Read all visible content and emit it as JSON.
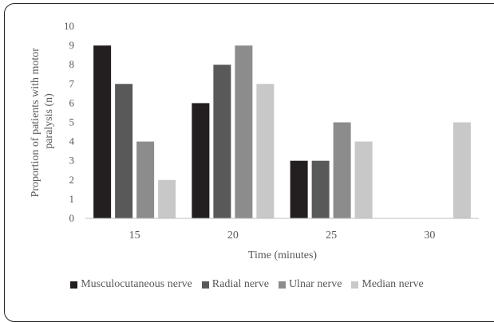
{
  "chart_data": {
    "type": "bar",
    "title": "",
    "xlabel": "Time (minutes)",
    "ylabel_lines": [
      "Proportion of patients with motor",
      "paralysis (n)"
    ],
    "categories": [
      "15",
      "20",
      "25",
      "30"
    ],
    "ylim": [
      0,
      10
    ],
    "yticks": [
      "0",
      "1",
      "2",
      "3",
      "4",
      "5",
      "6",
      "7",
      "8",
      "9",
      "10"
    ],
    "grid": false,
    "legend_position": "bottom",
    "series": [
      {
        "name": "Musculocutaneous nerve",
        "color": "#231f20",
        "values": [
          9,
          6,
          3,
          0
        ]
      },
      {
        "name": "Radial nerve",
        "color": "#595959",
        "values": [
          7,
          8,
          3,
          0
        ]
      },
      {
        "name": "Ulnar nerve",
        "color": "#8c8c8c",
        "values": [
          4,
          9,
          5,
          0
        ]
      },
      {
        "name": "Median nerve",
        "color": "#c8c8c8",
        "values": [
          2,
          7,
          4,
          5
        ]
      }
    ]
  }
}
